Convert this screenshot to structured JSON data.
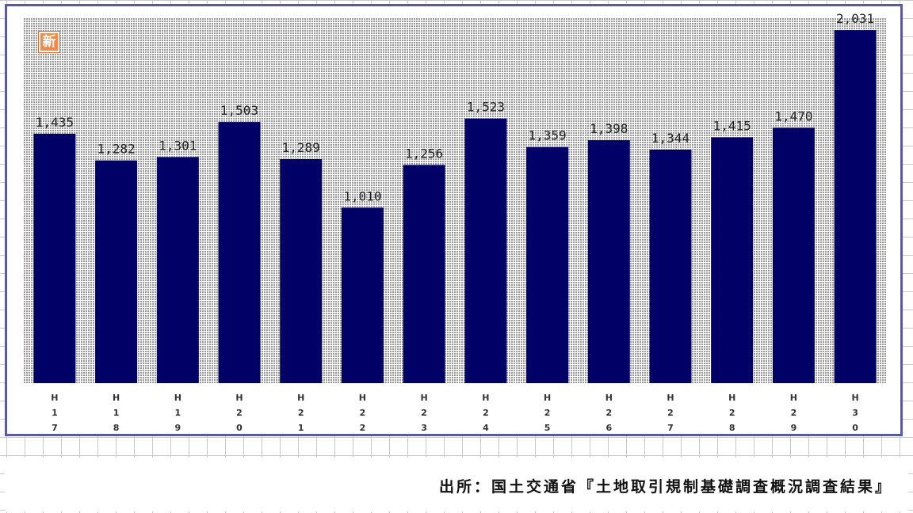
{
  "badge": {
    "label": "新"
  },
  "chart_data": {
    "type": "bar",
    "title": "",
    "xlabel": "",
    "ylabel": "",
    "categories": [
      "H17",
      "H18",
      "H19",
      "H20",
      "H21",
      "H22",
      "H23",
      "H24",
      "H25",
      "H26",
      "H27",
      "H28",
      "H29",
      "H30"
    ],
    "values": [
      1435,
      1282,
      1301,
      1503,
      1289,
      1010,
      1256,
      1523,
      1359,
      1398,
      1344,
      1415,
      1470,
      2031
    ],
    "value_labels": [
      "1,435",
      "1,282",
      "1,301",
      "1,503",
      "1,289",
      "1,010",
      "1,256",
      "1,523",
      "1,359",
      "1,398",
      "1,344",
      "1,415",
      "1,470",
      "2,031"
    ],
    "ylim": [
      0,
      2100
    ],
    "grid": false,
    "legend": "none",
    "colors": {
      "bar": "#000066",
      "plot_background": "#c4c4c4",
      "frame": "#5a5a9c"
    }
  },
  "footer": {
    "source": "出所：国土交通省『土地取引規制基礎調査概況調査結果』"
  }
}
